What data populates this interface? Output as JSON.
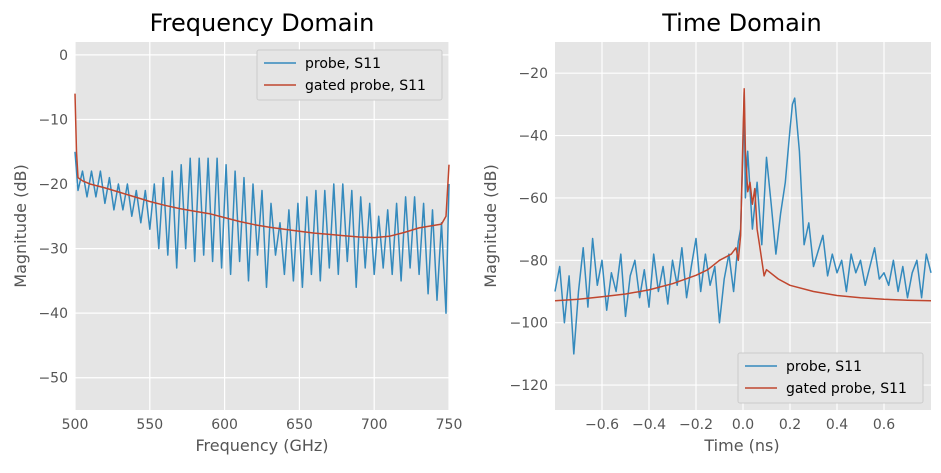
{
  "chart_data": [
    {
      "type": "line",
      "title": "Frequency Domain",
      "xlabel": "Frequency (GHz)",
      "ylabel": "Magnitude (dB)",
      "xlim": [
        500,
        750
      ],
      "ylim": [
        -55,
        2
      ],
      "xticks": [
        500,
        550,
        600,
        650,
        700,
        750
      ],
      "yticks": [
        0,
        -10,
        -20,
        -30,
        -40,
        -50
      ],
      "xtick_labels": [
        "500",
        "550",
        "600",
        "650",
        "700",
        "750"
      ],
      "ytick_labels": [
        "0",
        "−10",
        "−20",
        "−30",
        "−40",
        "−50"
      ],
      "grid": true,
      "legend_position": "top-right",
      "series": [
        {
          "name": "probe, S11",
          "color": "#348abd",
          "x": [
            500,
            502,
            505,
            508,
            511,
            514,
            517,
            520,
            523,
            526,
            529,
            532,
            535,
            538,
            541,
            544,
            547,
            550,
            553,
            556,
            559,
            562,
            565,
            568,
            571,
            574,
            577,
            580,
            583,
            586,
            589,
            592,
            595,
            598,
            601,
            604,
            607,
            610,
            613,
            616,
            619,
            622,
            625,
            628,
            631,
            634,
            637,
            640,
            643,
            646,
            649,
            652,
            655,
            658,
            661,
            664,
            667,
            670,
            673,
            676,
            679,
            682,
            685,
            688,
            691,
            694,
            697,
            700,
            703,
            706,
            709,
            712,
            715,
            718,
            721,
            724,
            727,
            730,
            733,
            736,
            739,
            742,
            745,
            748,
            750
          ],
          "y": [
            -15,
            -21,
            -18,
            -22,
            -18,
            -22,
            -18,
            -23,
            -19,
            -24,
            -20,
            -24,
            -20,
            -25,
            -21,
            -26,
            -21,
            -27,
            -20,
            -30,
            -19,
            -31,
            -18,
            -33,
            -17,
            -30,
            -16,
            -32,
            -16,
            -31,
            -16,
            -32,
            -16,
            -33,
            -17,
            -34,
            -18,
            -32,
            -19,
            -35,
            -20,
            -31,
            -21,
            -36,
            -23,
            -31,
            -26,
            -34,
            -24,
            -35,
            -23,
            -36,
            -22,
            -34,
            -21,
            -35,
            -21,
            -33,
            -20,
            -34,
            -20,
            -32,
            -21,
            -36,
            -22,
            -33,
            -23,
            -34,
            -25,
            -33,
            -24,
            -34,
            -23,
            -35,
            -22,
            -33,
            -22,
            -34,
            -23,
            -37,
            -24,
            -38,
            -26,
            -40,
            -20
          ]
        },
        {
          "name": "gated probe, S11",
          "color": "#c0462e",
          "x": [
            500,
            501,
            502,
            505,
            510,
            520,
            530,
            540,
            550,
            560,
            570,
            580,
            590,
            600,
            610,
            620,
            630,
            640,
            650,
            660,
            670,
            680,
            690,
            700,
            710,
            720,
            730,
            740,
            745,
            748,
            750
          ],
          "y": [
            -6,
            -15,
            -19,
            -19.5,
            -20,
            -20.6,
            -21.3,
            -22,
            -22.7,
            -23.3,
            -23.8,
            -24.2,
            -24.6,
            -25.2,
            -25.8,
            -26.3,
            -26.7,
            -27,
            -27.3,
            -27.6,
            -27.8,
            -28,
            -28.2,
            -28.3,
            -28.1,
            -27.5,
            -26.8,
            -26.4,
            -26.2,
            -25,
            -17
          ]
        }
      ]
    },
    {
      "type": "line",
      "title": "Time Domain",
      "xlabel": "Time (ns)",
      "ylabel": "Magnitude (dB)",
      "xlim": [
        -0.8,
        0.8
      ],
      "ylim": [
        -128,
        -10
      ],
      "xticks": [
        -0.6,
        -0.4,
        -0.2,
        0.0,
        0.2,
        0.4,
        0.6
      ],
      "yticks": [
        -20,
        -40,
        -60,
        -80,
        -100,
        -120
      ],
      "xtick_labels": [
        "−0.6",
        "−0.4",
        "−0.2",
        "0.0",
        "0.2",
        "0.4",
        "0.6"
      ],
      "ytick_labels": [
        "−20",
        "−40",
        "−60",
        "−80",
        "−100",
        "−120"
      ],
      "grid": true,
      "legend_position": "lower-right",
      "series": [
        {
          "name": "probe, S11",
          "color": "#348abd",
          "x": [
            -0.8,
            -0.78,
            -0.76,
            -0.74,
            -0.72,
            -0.7,
            -0.68,
            -0.66,
            -0.64,
            -0.62,
            -0.6,
            -0.58,
            -0.56,
            -0.54,
            -0.52,
            -0.5,
            -0.48,
            -0.46,
            -0.44,
            -0.42,
            -0.4,
            -0.38,
            -0.36,
            -0.34,
            -0.32,
            -0.3,
            -0.28,
            -0.26,
            -0.24,
            -0.22,
            -0.2,
            -0.18,
            -0.16,
            -0.14,
            -0.12,
            -0.1,
            -0.08,
            -0.06,
            -0.04,
            -0.02,
            -0.01,
            0.0,
            0.005,
            0.01,
            0.02,
            0.04,
            0.06,
            0.08,
            0.1,
            0.12,
            0.14,
            0.16,
            0.18,
            0.2,
            0.21,
            0.22,
            0.24,
            0.26,
            0.28,
            0.3,
            0.32,
            0.34,
            0.36,
            0.38,
            0.4,
            0.42,
            0.44,
            0.46,
            0.48,
            0.5,
            0.52,
            0.54,
            0.56,
            0.58,
            0.6,
            0.62,
            0.64,
            0.66,
            0.68,
            0.7,
            0.72,
            0.74,
            0.76,
            0.78,
            0.8
          ],
          "y": [
            -90,
            -82,
            -100,
            -85,
            -110,
            -90,
            -76,
            -95,
            -73,
            -88,
            -80,
            -96,
            -84,
            -90,
            -78,
            -98,
            -85,
            -80,
            -92,
            -83,
            -95,
            -78,
            -90,
            -82,
            -94,
            -80,
            -88,
            -76,
            -92,
            -82,
            -73,
            -90,
            -78,
            -88,
            -82,
            -100,
            -86,
            -78,
            -90,
            -74,
            -70,
            -45,
            -26,
            -60,
            -45,
            -70,
            -55,
            -75,
            -47,
            -62,
            -78,
            -65,
            -55,
            -38,
            -30,
            -28,
            -45,
            -75,
            -68,
            -82,
            -77,
            -72,
            -85,
            -78,
            -84,
            -80,
            -90,
            -78,
            -84,
            -80,
            -88,
            -82,
            -76,
            -86,
            -84,
            -88,
            -80,
            -90,
            -82,
            -92,
            -84,
            -80,
            -92,
            -78,
            -84
          ]
        },
        {
          "name": "gated probe, S11",
          "color": "#c0462e",
          "x": [
            -0.8,
            -0.7,
            -0.6,
            -0.5,
            -0.4,
            -0.3,
            -0.2,
            -0.15,
            -0.1,
            -0.05,
            -0.03,
            -0.02,
            -0.01,
            0.0,
            0.005,
            0.01,
            0.02,
            0.03,
            0.04,
            0.05,
            0.06,
            0.07,
            0.08,
            0.09,
            0.1,
            0.15,
            0.2,
            0.3,
            0.4,
            0.5,
            0.6,
            0.7,
            0.8
          ],
          "y": [
            -93,
            -92.5,
            -91.7,
            -90.8,
            -89.5,
            -87.5,
            -84.8,
            -83,
            -80,
            -78,
            -76,
            -80,
            -72,
            -40,
            -25,
            -45,
            -58,
            -55,
            -62,
            -57,
            -70,
            -75,
            -80,
            -85,
            -83,
            -86,
            -88,
            -90,
            -91.3,
            -92,
            -92.5,
            -92.8,
            -93
          ]
        }
      ]
    }
  ]
}
